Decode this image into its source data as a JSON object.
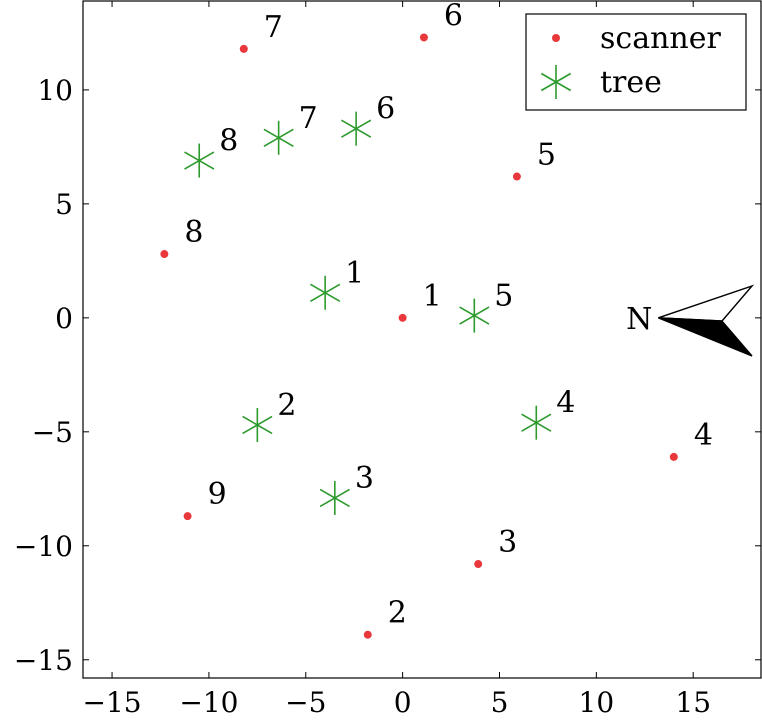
{
  "chart_data": {
    "type": "scatter",
    "xlim": [
      -16.5,
      18.5
    ],
    "ylim": [
      -15.8,
      13.9
    ],
    "x_ticks": [
      -15,
      -10,
      -5,
      0,
      5,
      10,
      15
    ],
    "y_ticks": [
      -15,
      -10,
      -5,
      0,
      5,
      10
    ],
    "x_tick_labels": [
      "−15",
      "−10",
      "−5",
      "0",
      "5",
      "10",
      "15"
    ],
    "y_tick_labels": [
      "−15",
      "−10",
      "−5",
      "0",
      "5",
      "10"
    ],
    "grid": false,
    "legend_position": "top-right",
    "series": [
      {
        "name": "scanner",
        "marker": "dot",
        "color": "#e8383b",
        "points": [
          {
            "x": 0,
            "y": 0,
            "label": "1"
          },
          {
            "x": -1.8,
            "y": -13.9,
            "label": "2"
          },
          {
            "x": 3.9,
            "y": -10.8,
            "label": "3"
          },
          {
            "x": 14.0,
            "y": -6.1,
            "label": "4"
          },
          {
            "x": 5.9,
            "y": 6.2,
            "label": "5"
          },
          {
            "x": 1.1,
            "y": 12.3,
            "label": "6"
          },
          {
            "x": -8.2,
            "y": 11.8,
            "label": "7"
          },
          {
            "x": -12.3,
            "y": 2.8,
            "label": "8"
          },
          {
            "x": -11.1,
            "y": -8.7,
            "label": "9"
          }
        ]
      },
      {
        "name": "tree",
        "marker": "asterisk",
        "color": "#2d9a2d",
        "points": [
          {
            "x": -4.0,
            "y": 1.1,
            "label": "1"
          },
          {
            "x": -7.5,
            "y": -4.7,
            "label": "2"
          },
          {
            "x": -3.5,
            "y": -7.9,
            "label": "3"
          },
          {
            "x": 6.9,
            "y": -4.6,
            "label": "4"
          },
          {
            "x": 3.7,
            "y": 0.1,
            "label": "5"
          },
          {
            "x": -2.4,
            "y": 8.3,
            "label": "6"
          },
          {
            "x": -6.4,
            "y": 7.9,
            "label": "7"
          },
          {
            "x": -10.5,
            "y": 6.9,
            "label": "8"
          }
        ]
      }
    ],
    "north_arrow": {
      "label": "N",
      "color": "#000000"
    }
  }
}
